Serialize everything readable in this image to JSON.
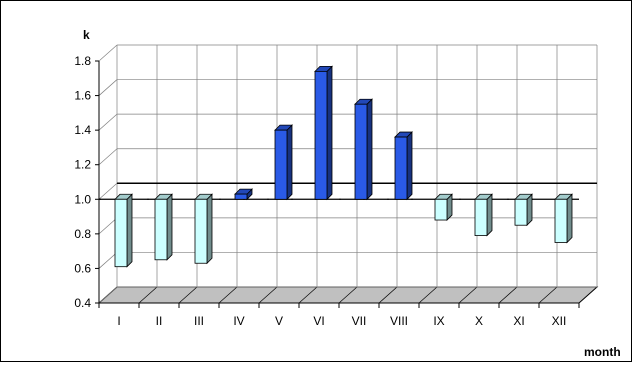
{
  "chart_data": {
    "type": "bar",
    "title": "",
    "ylabel": "k",
    "xlabel": "month",
    "categories": [
      "I",
      "II",
      "III",
      "IV",
      "V",
      "VI",
      "VII",
      "VIII",
      "IX",
      "X",
      "XI",
      "XII"
    ],
    "baseline": 1.0,
    "values": [
      0.61,
      0.65,
      0.63,
      1.03,
      1.4,
      1.74,
      1.55,
      1.36,
      0.88,
      0.79,
      0.85,
      0.75
    ],
    "ylim": [
      0.4,
      1.8
    ],
    "yticks": [
      "0.4",
      "0.6",
      "0.8",
      "1.0",
      "1.2",
      "1.4",
      "1.6",
      "1.8"
    ],
    "grid": true,
    "colors": {
      "above_baseline": "#2a5ae6",
      "below_baseline": "#ccffff",
      "floor": "#c0c0c0",
      "grid": "#808080",
      "reference_line": "#000000"
    }
  }
}
